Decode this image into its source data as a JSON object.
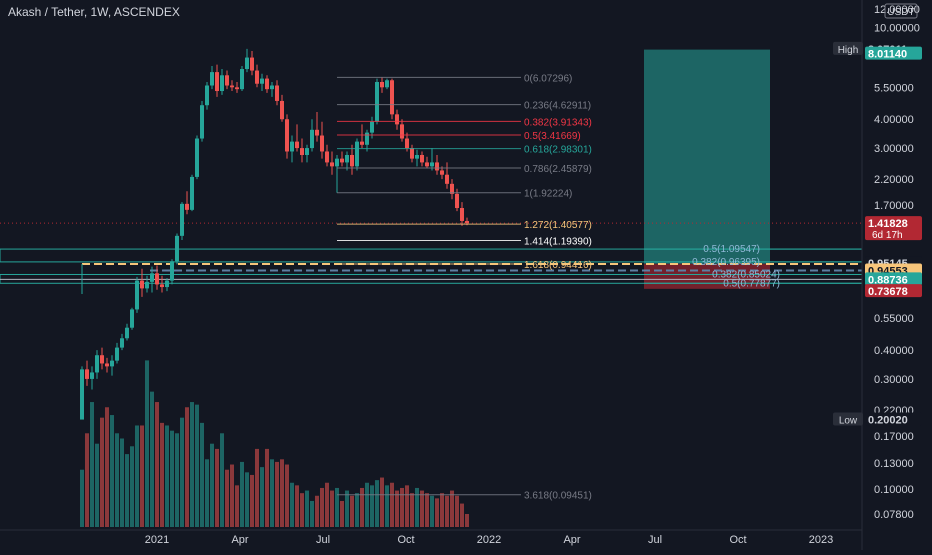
{
  "header": {
    "title": "Akash / Tether, 1W, ASCENDEX"
  },
  "currency_badge": "USDT",
  "x_axis_labels": [
    "2021",
    "Apr",
    "Jul",
    "Oct",
    "2022",
    "Apr",
    "Jul",
    "Oct",
    "2023"
  ],
  "y_axis_labels": [
    {
      "value": 12.0,
      "label": "12.00000"
    },
    {
      "value": 10.0,
      "label": "10.00000"
    },
    {
      "value": 5.5,
      "label": "5.50000"
    },
    {
      "value": 4.0,
      "label": "4.00000"
    },
    {
      "value": 3.0,
      "label": "3.00000"
    },
    {
      "value": 2.2,
      "label": "2.20000"
    },
    {
      "value": 1.7,
      "label": "1.70000"
    },
    {
      "value": 0.55,
      "label": "0.55000"
    },
    {
      "value": 0.4,
      "label": "0.40000"
    },
    {
      "value": 0.3,
      "label": "0.30000"
    },
    {
      "value": 0.22,
      "label": "0.22000"
    },
    {
      "value": 0.17,
      "label": "0.17000"
    },
    {
      "value": 0.13,
      "label": "0.13000"
    },
    {
      "value": 0.1,
      "label": "0.10000"
    },
    {
      "value": 0.078,
      "label": "0.07800"
    }
  ],
  "price_badges": [
    {
      "value": 8.07011,
      "label": "8.07011",
      "prefix": "High",
      "bg": "#131722",
      "fg": "#d1d4dc",
      "prefix_bg": "#2a2e39"
    },
    {
      "value": 7.7,
      "label": "8.01140",
      "bg": "#26a69a",
      "fg": "#ffffff"
    },
    {
      "value": 1.41828,
      "label": "1.41828",
      "sub": "6d 17h",
      "bg": "#b22833",
      "fg": "#ffffff"
    },
    {
      "value": 0.95145,
      "label": "0.95145",
      "bg": "#131722",
      "fg": "#d1d4dc"
    },
    {
      "value": 0.885,
      "label": "0.94553",
      "bg": "#f7c57a",
      "fg": "#131722"
    },
    {
      "value": 0.81,
      "label": "0.88736",
      "bg": "#26a69a",
      "fg": "#ffffff"
    },
    {
      "value": 0.72,
      "label": "0.73678",
      "bg": "#b22833",
      "fg": "#ffffff"
    },
    {
      "value": 0.2002,
      "label": "0.20020",
      "prefix": "Low",
      "bg": "#131722",
      "fg": "#d1d4dc",
      "prefix_bg": "#2a2e39"
    }
  ],
  "fib_levels": [
    {
      "label": "0(6.07296)",
      "value": 6.07296,
      "color": "#787b86"
    },
    {
      "label": "0.236(4.62911)",
      "value": 4.62911,
      "color": "#787b86"
    },
    {
      "label": "0.382(3.91343)",
      "value": 3.91343,
      "color": "#f23645"
    },
    {
      "label": "0.5(3.41669)",
      "value": 3.41669,
      "color": "#f23645"
    },
    {
      "label": "0.618(2.98301)",
      "value": 2.98301,
      "color": "#26a69a"
    },
    {
      "label": "0.786(2.45879)",
      "value": 2.45879,
      "color": "#787b86"
    },
    {
      "label": "1(1.92224)",
      "value": 1.92224,
      "color": "#787b86"
    },
    {
      "label": "1.272(1.40577)",
      "value": 1.40577,
      "color": "#f7c57a"
    },
    {
      "label": "1.414(1.19390)",
      "value": 1.1939,
      "color": "#ffffff"
    },
    {
      "label": "1.618(0.94416)",
      "value": 0.94416,
      "color": "#f7c57a"
    },
    {
      "label": "3.618(0.09451)",
      "value": 0.09451,
      "color": "#787b86"
    }
  ],
  "fib_right_levels": [
    {
      "label": "0.5(1.09547)",
      "value": 1.09547,
      "color": "#26a69a"
    },
    {
      "label": "0.382(0.96395)",
      "value": 0.96395,
      "color": "#26a69a"
    },
    {
      "label": "0.382(0.85024)",
      "value": 0.85024,
      "color": "#26a69a"
    },
    {
      "label": "0.5(0.77877)",
      "value": 0.77877,
      "color": "#26a69a"
    }
  ],
  "position": {
    "entry": 0.94553,
    "target": 8.0114,
    "stop": 0.73678,
    "profit_color": "#26a69a",
    "loss_color": "#b22833"
  },
  "candles": [
    {
      "o": 0.2,
      "h": 0.34,
      "l": 0.2002,
      "c": 0.33
    },
    {
      "o": 0.33,
      "h": 0.36,
      "l": 0.28,
      "c": 0.3
    },
    {
      "o": 0.3,
      "h": 0.34,
      "l": 0.27,
      "c": 0.32
    },
    {
      "o": 0.32,
      "h": 0.4,
      "l": 0.3,
      "c": 0.38
    },
    {
      "o": 0.38,
      "h": 0.41,
      "l": 0.33,
      "c": 0.35
    },
    {
      "o": 0.35,
      "h": 0.37,
      "l": 0.32,
      "c": 0.34
    },
    {
      "o": 0.34,
      "h": 0.38,
      "l": 0.31,
      "c": 0.36
    },
    {
      "o": 0.36,
      "h": 0.43,
      "l": 0.35,
      "c": 0.41
    },
    {
      "o": 0.41,
      "h": 0.47,
      "l": 0.4,
      "c": 0.45
    },
    {
      "o": 0.45,
      "h": 0.52,
      "l": 0.44,
      "c": 0.5
    },
    {
      "o": 0.5,
      "h": 0.61,
      "l": 0.49,
      "c": 0.6
    },
    {
      "o": 0.6,
      "h": 0.83,
      "l": 0.58,
      "c": 0.8
    },
    {
      "o": 0.8,
      "h": 0.9,
      "l": 0.68,
      "c": 0.74
    },
    {
      "o": 0.74,
      "h": 0.84,
      "l": 0.71,
      "c": 0.79
    },
    {
      "o": 0.79,
      "h": 0.92,
      "l": 0.71,
      "c": 0.86
    },
    {
      "o": 0.86,
      "h": 0.93,
      "l": 0.73,
      "c": 0.77
    },
    {
      "o": 0.77,
      "h": 0.84,
      "l": 0.71,
      "c": 0.75
    },
    {
      "o": 0.75,
      "h": 0.82,
      "l": 0.72,
      "c": 0.8
    },
    {
      "o": 0.8,
      "h": 0.99,
      "l": 0.77,
      "c": 0.97
    },
    {
      "o": 0.97,
      "h": 1.28,
      "l": 0.94,
      "c": 1.25
    },
    {
      "o": 1.25,
      "h": 1.75,
      "l": 1.2,
      "c": 1.72
    },
    {
      "o": 1.72,
      "h": 1.95,
      "l": 1.55,
      "c": 1.62
    },
    {
      "o": 1.62,
      "h": 2.3,
      "l": 1.6,
      "c": 2.25
    },
    {
      "o": 2.25,
      "h": 3.4,
      "l": 2.2,
      "c": 3.3
    },
    {
      "o": 3.3,
      "h": 4.8,
      "l": 3.2,
      "c": 4.6
    },
    {
      "o": 4.6,
      "h": 5.8,
      "l": 4.4,
      "c": 5.6
    },
    {
      "o": 5.6,
      "h": 6.8,
      "l": 5.4,
      "c": 6.4
    },
    {
      "o": 6.4,
      "h": 6.9,
      "l": 5.0,
      "c": 5.3
    },
    {
      "o": 5.3,
      "h": 6.6,
      "l": 5.1,
      "c": 6.2
    },
    {
      "o": 6.2,
      "h": 6.5,
      "l": 5.4,
      "c": 5.6
    },
    {
      "o": 5.6,
      "h": 5.9,
      "l": 5.3,
      "c": 5.5
    },
    {
      "o": 5.5,
      "h": 5.8,
      "l": 5.2,
      "c": 5.4
    },
    {
      "o": 5.4,
      "h": 6.8,
      "l": 5.3,
      "c": 6.6
    },
    {
      "o": 6.6,
      "h": 8.07011,
      "l": 6.4,
      "c": 7.4
    },
    {
      "o": 7.4,
      "h": 7.9,
      "l": 6.2,
      "c": 6.5
    },
    {
      "o": 6.5,
      "h": 6.9,
      "l": 5.5,
      "c": 5.7
    },
    {
      "o": 5.7,
      "h": 6.3,
      "l": 5.3,
      "c": 6.0
    },
    {
      "o": 6.0,
      "h": 6.2,
      "l": 5.2,
      "c": 5.4
    },
    {
      "o": 5.4,
      "h": 5.8,
      "l": 5.0,
      "c": 5.6
    },
    {
      "o": 5.6,
      "h": 5.9,
      "l": 4.6,
      "c": 4.8
    },
    {
      "o": 4.8,
      "h": 5.1,
      "l": 3.9,
      "c": 4.0
    },
    {
      "o": 4.0,
      "h": 4.2,
      "l": 2.7,
      "c": 2.9
    },
    {
      "o": 2.9,
      "h": 3.4,
      "l": 2.6,
      "c": 3.2
    },
    {
      "o": 3.2,
      "h": 3.8,
      "l": 2.9,
      "c": 3.0
    },
    {
      "o": 3.0,
      "h": 3.3,
      "l": 2.6,
      "c": 2.8
    },
    {
      "o": 2.8,
      "h": 3.1,
      "l": 2.6,
      "c": 3.0
    },
    {
      "o": 3.0,
      "h": 4.0,
      "l": 2.9,
      "c": 3.6
    },
    {
      "o": 3.6,
      "h": 4.3,
      "l": 3.2,
      "c": 3.4
    },
    {
      "o": 3.4,
      "h": 3.9,
      "l": 2.7,
      "c": 2.9
    },
    {
      "o": 2.9,
      "h": 3.1,
      "l": 2.5,
      "c": 2.6
    },
    {
      "o": 2.6,
      "h": 2.9,
      "l": 2.3,
      "c": 2.5
    },
    {
      "o": 2.5,
      "h": 2.8,
      "l": 1.92224,
      "c": 2.7
    },
    {
      "o": 2.7,
      "h": 2.9,
      "l": 2.5,
      "c": 2.6
    },
    {
      "o": 2.6,
      "h": 2.9,
      "l": 2.4,
      "c": 2.8
    },
    {
      "o": 2.8,
      "h": 3.1,
      "l": 2.3,
      "c": 2.5
    },
    {
      "o": 2.5,
      "h": 3.3,
      "l": 2.4,
      "c": 3.2
    },
    {
      "o": 3.2,
      "h": 3.8,
      "l": 3.0,
      "c": 3.1
    },
    {
      "o": 3.1,
      "h": 3.6,
      "l": 2.9,
      "c": 3.5
    },
    {
      "o": 3.5,
      "h": 4.1,
      "l": 3.3,
      "c": 3.9
    },
    {
      "o": 3.9,
      "h": 6.0,
      "l": 3.8,
      "c": 5.8
    },
    {
      "o": 5.8,
      "h": 6.07296,
      "l": 5.2,
      "c": 5.5
    },
    {
      "o": 5.5,
      "h": 6.0,
      "l": 5.4,
      "c": 5.9
    },
    {
      "o": 5.9,
      "h": 6.0,
      "l": 4.0,
      "c": 4.2
    },
    {
      "o": 4.2,
      "h": 4.4,
      "l": 3.6,
      "c": 3.8
    },
    {
      "o": 3.8,
      "h": 4.0,
      "l": 3.2,
      "c": 3.3
    },
    {
      "o": 3.3,
      "h": 3.5,
      "l": 2.9,
      "c": 3.0
    },
    {
      "o": 3.0,
      "h": 3.1,
      "l": 2.6,
      "c": 2.7
    },
    {
      "o": 2.7,
      "h": 2.95,
      "l": 2.5,
      "c": 2.8
    },
    {
      "o": 2.8,
      "h": 2.9,
      "l": 2.5,
      "c": 2.6
    },
    {
      "o": 2.6,
      "h": 2.75,
      "l": 2.45,
      "c": 2.5
    },
    {
      "o": 2.5,
      "h": 3.0,
      "l": 2.4,
      "c": 2.6
    },
    {
      "o": 2.6,
      "h": 2.8,
      "l": 2.3,
      "c": 2.4
    },
    {
      "o": 2.4,
      "h": 2.5,
      "l": 2.2,
      "c": 2.3
    },
    {
      "o": 2.3,
      "h": 2.6,
      "l": 2.0,
      "c": 2.1
    },
    {
      "o": 2.1,
      "h": 2.2,
      "l": 1.8,
      "c": 1.9
    },
    {
      "o": 1.9,
      "h": 2.0,
      "l": 1.6,
      "c": 1.65
    },
    {
      "o": 1.65,
      "h": 1.75,
      "l": 1.38,
      "c": 1.45
    },
    {
      "o": 1.45,
      "h": 1.5,
      "l": 1.39,
      "c": 1.41828
    }
  ],
  "volumes": [
    0.22,
    0.36,
    0.48,
    0.32,
    0.42,
    0.46,
    0.43,
    0.36,
    0.34,
    0.28,
    0.31,
    0.39,
    0.39,
    0.64,
    0.52,
    0.48,
    0.4,
    0.39,
    0.37,
    0.36,
    0.42,
    0.46,
    0.48,
    0.47,
    0.4,
    0.26,
    0.32,
    0.3,
    0.36,
    0.22,
    0.24,
    0.16,
    0.25,
    0.21,
    0.2,
    0.3,
    0.23,
    0.3,
    0.26,
    0.25,
    0.26,
    0.24,
    0.17,
    0.16,
    0.13,
    0.14,
    0.1,
    0.12,
    0.15,
    0.17,
    0.14,
    0.15,
    0.1,
    0.14,
    0.12,
    0.13,
    0.15,
    0.17,
    0.16,
    0.18,
    0.19,
    0.16,
    0.17,
    0.14,
    0.15,
    0.16,
    0.13,
    0.15,
    0.14,
    0.13,
    0.12,
    0.11,
    0.13,
    0.12,
    0.14,
    0.12,
    0.09,
    0.05
  ],
  "chart_data": {
    "type": "candlestick",
    "title": "Akash / Tether, 1W, ASCENDEX",
    "x": [
      "2021",
      "Apr",
      "Jul",
      "Oct",
      "2022",
      "Apr",
      "Jul",
      "Oct",
      "2023"
    ],
    "y_scale": "log",
    "ylim": [
      0.072,
      12.5
    ],
    "high": 8.07011,
    "low": 0.2002,
    "last": 1.41828,
    "countdown": "6d 17h"
  }
}
